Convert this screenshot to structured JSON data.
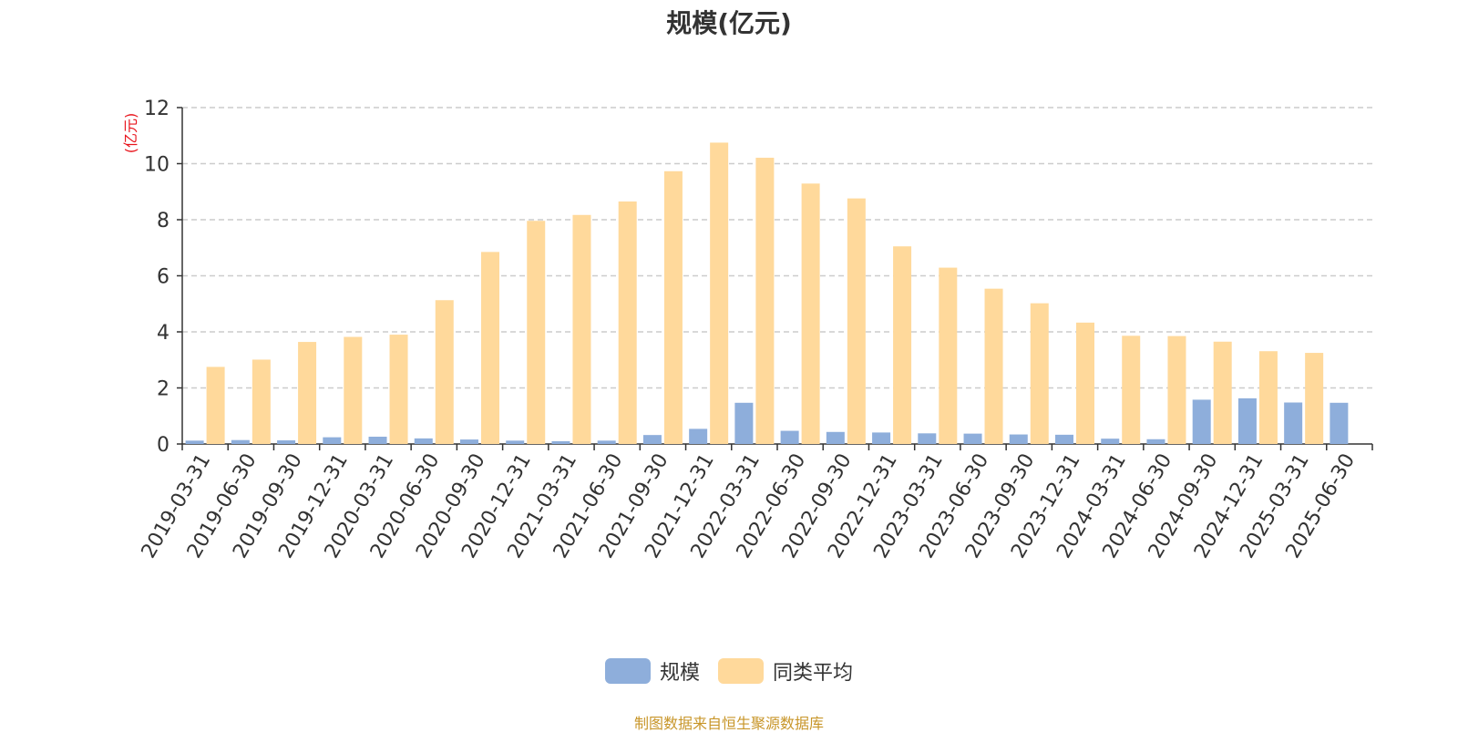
{
  "chart_data": {
    "type": "bar",
    "title": "规模(亿元)",
    "ylabel": "(亿元)",
    "xlabel": "",
    "ylim": [
      0,
      12
    ],
    "yticks": [
      0,
      2,
      4,
      6,
      8,
      10,
      12
    ],
    "grid": true,
    "legend_position": "bottom-center",
    "categories": [
      "2019-03-31",
      "2019-06-30",
      "2019-09-30",
      "2019-12-31",
      "2020-03-31",
      "2020-06-30",
      "2020-09-30",
      "2020-12-31",
      "2021-03-31",
      "2021-06-30",
      "2021-09-30",
      "2021-12-31",
      "2022-03-31",
      "2022-06-30",
      "2022-09-30",
      "2022-12-31",
      "2023-03-31",
      "2023-06-30",
      "2023-09-30",
      "2023-12-31",
      "2024-03-31",
      "2024-06-30",
      "2024-09-30",
      "2024-12-31",
      "2025-03-31",
      "2025-06-30"
    ],
    "series": [
      {
        "name": "规模",
        "color": "#8eaedb",
        "values": [
          0.12,
          0.14,
          0.13,
          0.24,
          0.26,
          0.2,
          0.16,
          0.12,
          0.1,
          0.12,
          0.32,
          0.54,
          1.47,
          0.47,
          0.43,
          0.41,
          0.38,
          0.37,
          0.34,
          0.33,
          0.19,
          0.17,
          1.58,
          1.63,
          1.48,
          1.47
        ]
      },
      {
        "name": "同类平均",
        "color": "#ffd99b",
        "values": [
          2.75,
          3.01,
          3.64,
          3.82,
          3.9,
          5.13,
          6.85,
          7.96,
          8.17,
          8.65,
          9.73,
          10.75,
          10.21,
          9.29,
          8.76,
          7.05,
          6.29,
          5.54,
          5.02,
          4.33,
          3.86,
          3.85,
          3.65,
          3.31,
          3.25,
          null
        ]
      }
    ],
    "ylabel_color": "#e8141c"
  },
  "source": {
    "text": "制图数据来自恒生聚源数据库",
    "color": "#c8962a"
  }
}
